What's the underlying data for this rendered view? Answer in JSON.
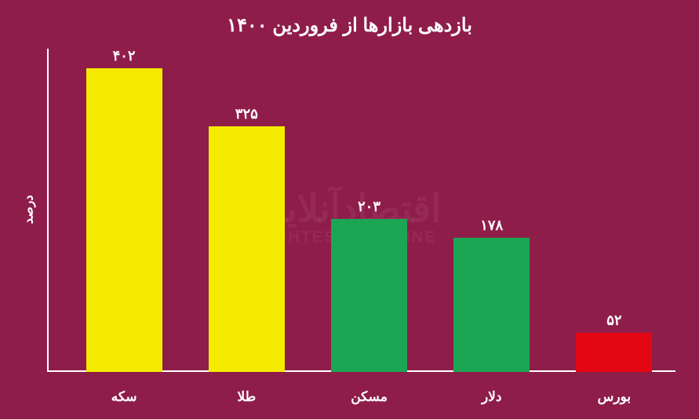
{
  "chart": {
    "type": "bar",
    "title": "بازدهی بازارها از فروردین ۱۴۰۰",
    "title_fontsize": 24,
    "ylabel": "درصد",
    "ylabel_fontsize": 16,
    "background_color": "#8f1d4a",
    "axis_color": "#ffffff",
    "text_color": "#ffffff",
    "value_fontsize": 18,
    "xlabel_fontsize": 17,
    "bar_width_pct": 62,
    "ylim": [
      0,
      420
    ],
    "watermark": {
      "line1": "اقتصادآنلاین",
      "line2": "EGHTESAD ONLINE",
      "fontsize_line1": 48,
      "fontsize_line2": 20,
      "color": "rgba(255,255,255,0.06)"
    },
    "bars": [
      {
        "category": "سکه",
        "value_label": "۴۰۲",
        "value": 402,
        "color": "#f5eb00"
      },
      {
        "category": "طلا",
        "value_label": "۳۲۵",
        "value": 325,
        "color": "#f5eb00"
      },
      {
        "category": "مسکن",
        "value_label": "۲۰۳",
        "value": 203,
        "color": "#1aa653"
      },
      {
        "category": "دلار",
        "value_label": "۱۷۸",
        "value": 178,
        "color": "#1aa653"
      },
      {
        "category": "بورس",
        "value_label": "۵۲",
        "value": 52,
        "color": "#e30613"
      }
    ]
  }
}
